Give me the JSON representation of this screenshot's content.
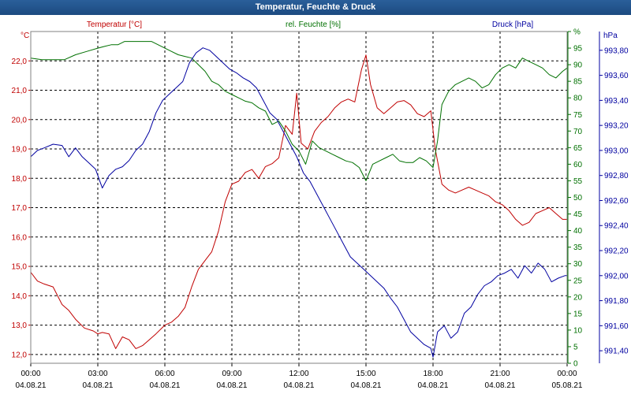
{
  "window": {
    "title": "Temperatur, Feuchte & Druck"
  },
  "chart_data": {
    "type": "line",
    "title": "Temperatur, Feuchte & Druck",
    "colors": {
      "temperature": "#c00000",
      "humidity": "#007000",
      "pressure": "#0000a0"
    },
    "grid": true,
    "x_ticks": [
      {
        "time": "00:00",
        "date": "04.08.21"
      },
      {
        "time": "03:00",
        "date": "04.08.21"
      },
      {
        "time": "06:00",
        "date": "04.08.21"
      },
      {
        "time": "09:00",
        "date": "04.08.21"
      },
      {
        "time": "12:00",
        "date": "04.08.21"
      },
      {
        "time": "15:00",
        "date": "04.08.21"
      },
      {
        "time": "18:00",
        "date": "04.08.21"
      },
      {
        "time": "21:00",
        "date": "04.08.21"
      },
      {
        "time": "00:00",
        "date": "05.08.21"
      }
    ],
    "x_range_hours": [
      0,
      24
    ],
    "axes": {
      "temperature": {
        "unit": "°C",
        "label": "Temperatur [°C]",
        "ylim": [
          11.7,
          23.0
        ],
        "ticks": [
          "12,0",
          "13,0",
          "14,0",
          "15,0",
          "16,0",
          "17,0",
          "18,0",
          "19,0",
          "20,0",
          "21,0",
          "22,0"
        ],
        "tick_values": [
          12,
          13,
          14,
          15,
          16,
          17,
          18,
          19,
          20,
          21,
          22
        ]
      },
      "humidity": {
        "unit": "%",
        "label": "rel. Feuchte [%]",
        "ylim": [
          0,
          100
        ],
        "ticks": [
          "0",
          "5",
          "10",
          "15",
          "20",
          "25",
          "30",
          "35",
          "40",
          "45",
          "50",
          "55",
          "60",
          "65",
          "70",
          "75",
          "80",
          "85",
          "90",
          "95",
          "%"
        ],
        "tick_values": [
          0,
          5,
          10,
          15,
          20,
          25,
          30,
          35,
          40,
          45,
          50,
          55,
          60,
          65,
          70,
          75,
          80,
          85,
          90,
          95,
          100
        ]
      },
      "pressure": {
        "unit": "hPa",
        "label": "Druck [hPa]",
        "ylim": [
          991.3,
          993.95
        ],
        "ticks": [
          "991,40",
          "991,60",
          "991,80",
          "992,00",
          "992,20",
          "992,40",
          "992,60",
          "992,80",
          "993,00",
          "993,20",
          "993,40",
          "993,60",
          "993,80"
        ],
        "tick_values": [
          991.4,
          991.6,
          991.8,
          992.0,
          992.2,
          992.4,
          992.6,
          992.8,
          993.0,
          993.2,
          993.4,
          993.6,
          993.8
        ]
      }
    },
    "series": [
      {
        "name": "Temperatur [°C]",
        "axis": "temperature",
        "x": [
          0,
          0.3,
          0.6,
          1.0,
          1.4,
          1.7,
          2.0,
          2.4,
          2.8,
          3.0,
          3.2,
          3.5,
          3.8,
          4.1,
          4.4,
          4.7,
          5.0,
          5.3,
          5.6,
          6.0,
          6.3,
          6.6,
          6.9,
          7.2,
          7.5,
          7.8,
          8.1,
          8.4,
          8.7,
          9.0,
          9.3,
          9.6,
          9.9,
          10.2,
          10.5,
          10.8,
          11.1,
          11.4,
          11.7,
          11.9,
          12.1,
          12.4,
          12.7,
          13.0,
          13.3,
          13.6,
          13.9,
          14.2,
          14.5,
          14.8,
          15.0,
          15.2,
          15.5,
          15.8,
          16.1,
          16.4,
          16.7,
          17.0,
          17.3,
          17.6,
          17.9,
          18.1,
          18.4,
          18.7,
          19.0,
          19.3,
          19.6,
          19.9,
          20.2,
          20.5,
          20.8,
          21.1,
          21.4,
          21.7,
          22.0,
          22.3,
          22.6,
          22.9,
          23.2,
          23.5,
          23.8,
          24.0
        ],
        "values": [
          14.8,
          14.5,
          14.4,
          14.3,
          13.7,
          13.5,
          13.2,
          12.9,
          12.8,
          12.7,
          12.75,
          12.7,
          12.2,
          12.6,
          12.5,
          12.2,
          12.3,
          12.5,
          12.7,
          13.0,
          13.1,
          13.3,
          13.6,
          14.3,
          14.9,
          15.2,
          15.5,
          16.2,
          17.2,
          17.8,
          17.9,
          18.2,
          18.3,
          18.0,
          18.4,
          18.5,
          18.7,
          19.8,
          19.5,
          20.9,
          19.2,
          19.0,
          19.6,
          19.9,
          20.1,
          20.4,
          20.6,
          20.7,
          20.6,
          21.7,
          22.2,
          21.2,
          20.4,
          20.2,
          20.4,
          20.6,
          20.65,
          20.5,
          20.2,
          20.1,
          20.3,
          19.0,
          17.8,
          17.6,
          17.5,
          17.6,
          17.7,
          17.6,
          17.5,
          17.4,
          17.2,
          17.1,
          16.9,
          16.6,
          16.4,
          16.5,
          16.8,
          16.9,
          17.0,
          16.8,
          16.6,
          16.6
        ]
      },
      {
        "name": "rel. Feuchte [%]",
        "axis": "humidity",
        "x": [
          0,
          0.5,
          1.0,
          1.5,
          2.0,
          2.5,
          3.0,
          3.3,
          3.6,
          3.9,
          4.2,
          4.5,
          4.8,
          5.1,
          5.4,
          5.7,
          6.0,
          6.3,
          6.6,
          6.9,
          7.2,
          7.5,
          7.8,
          8.1,
          8.4,
          8.7,
          9.0,
          9.3,
          9.6,
          9.9,
          10.2,
          10.5,
          10.8,
          11.1,
          11.4,
          11.7,
          12.0,
          12.3,
          12.6,
          12.9,
          13.2,
          13.5,
          13.8,
          14.1,
          14.4,
          14.7,
          15.0,
          15.3,
          15.6,
          15.9,
          16.2,
          16.5,
          16.8,
          17.1,
          17.4,
          17.7,
          18.0,
          18.2,
          18.4,
          18.7,
          19.0,
          19.3,
          19.6,
          19.9,
          20.2,
          20.5,
          20.8,
          21.1,
          21.4,
          21.7,
          22.0,
          22.3,
          22.6,
          22.9,
          23.2,
          23.5,
          23.8,
          24.0
        ],
        "values": [
          92,
          91.5,
          91.5,
          91.5,
          93,
          94,
          95,
          95.5,
          96,
          96,
          97,
          97,
          97,
          97,
          97,
          96,
          95,
          94,
          93,
          92.5,
          92,
          90,
          88,
          85,
          84,
          82,
          81,
          80,
          79,
          78.5,
          77,
          76,
          72,
          73,
          70,
          66,
          64,
          60,
          67,
          65,
          64,
          63,
          62,
          61,
          60.5,
          59,
          55,
          60,
          61,
          62,
          63,
          61,
          60.5,
          60.5,
          62,
          61,
          59,
          67,
          78,
          82,
          84,
          85,
          86,
          85,
          83,
          84,
          87,
          89,
          90,
          89,
          92,
          91,
          90,
          89,
          87,
          86,
          88,
          89
        ]
      },
      {
        "name": "Druck [hPa]",
        "axis": "pressure",
        "x": [
          0,
          0.3,
          0.6,
          1.0,
          1.4,
          1.7,
          2.0,
          2.3,
          2.6,
          2.9,
          3.2,
          3.5,
          3.8,
          4.1,
          4.4,
          4.7,
          5.0,
          5.3,
          5.6,
          5.9,
          6.2,
          6.5,
          6.8,
          7.1,
          7.4,
          7.7,
          8.0,
          8.3,
          8.6,
          8.9,
          9.2,
          9.5,
          9.8,
          10.1,
          10.4,
          10.7,
          11.0,
          11.3,
          11.6,
          11.9,
          12.2,
          12.5,
          12.8,
          13.1,
          13.4,
          13.7,
          14.0,
          14.3,
          14.6,
          14.9,
          15.2,
          15.5,
          15.8,
          16.1,
          16.4,
          16.7,
          17.0,
          17.3,
          17.6,
          17.9,
          18.0,
          18.2,
          18.5,
          18.8,
          19.1,
          19.4,
          19.7,
          20.0,
          20.3,
          20.6,
          20.9,
          21.2,
          21.5,
          21.8,
          22.1,
          22.4,
          22.7,
          23.0,
          23.3,
          23.6,
          23.9,
          24.0
        ],
        "values": [
          992.95,
          993.0,
          993.02,
          993.05,
          993.04,
          992.95,
          993.02,
          992.95,
          992.9,
          992.85,
          992.7,
          992.8,
          992.85,
          992.87,
          992.92,
          993.0,
          993.05,
          993.15,
          993.3,
          993.4,
          993.45,
          993.5,
          993.55,
          993.7,
          993.78,
          993.82,
          993.8,
          993.75,
          993.7,
          993.65,
          993.62,
          993.58,
          993.55,
          993.5,
          993.4,
          993.3,
          993.25,
          993.15,
          993.05,
          992.95,
          992.82,
          992.75,
          992.65,
          992.55,
          992.45,
          992.35,
          992.25,
          992.15,
          992.1,
          992.05,
          992.0,
          991.95,
          991.9,
          991.82,
          991.75,
          991.65,
          991.55,
          991.5,
          991.45,
          991.42,
          991.35,
          991.55,
          991.6,
          991.5,
          991.55,
          991.7,
          991.75,
          991.85,
          991.92,
          991.95,
          992.0,
          992.02,
          992.05,
          991.98,
          992.08,
          992.02,
          992.1,
          992.05,
          991.95,
          991.98,
          992.0,
          992.0
        ]
      }
    ]
  }
}
